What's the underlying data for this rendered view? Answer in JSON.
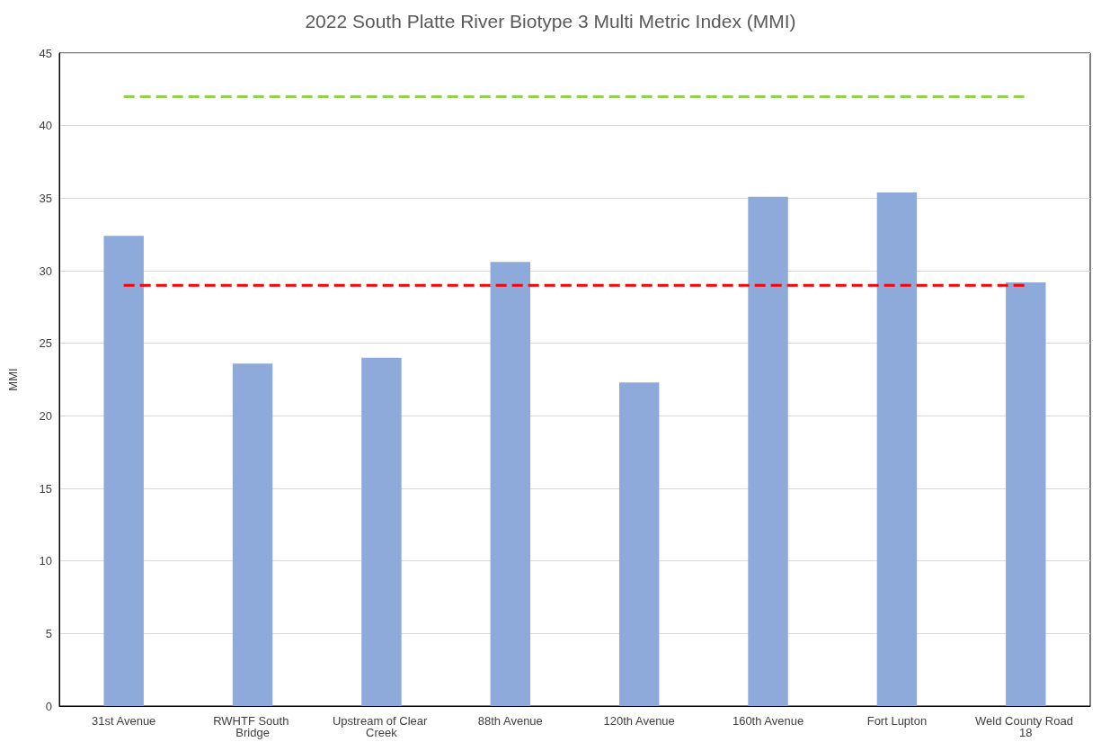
{
  "chart_data": {
    "type": "bar",
    "title": "2022 South Platte River Biotype 3 Multi Metric Index (MMI)",
    "ylabel": "MMI",
    "categories": [
      "31st Avenue",
      "RWHTF South Bridge",
      "Upstream of Clear Creek",
      "88th Avenue",
      "120th Avenue",
      "160th Avenue",
      "Fort Lupton",
      "Weld County Road 18"
    ],
    "series": [
      {
        "color": "#8eaadb",
        "values": [
          32.4,
          23.6,
          24.0,
          30.6,
          22.3,
          35.1,
          35.4,
          29.2
        ]
      },
      {
        "type": "line",
        "color": "#92d050",
        "line_style": "dashed",
        "marker": "none",
        "values": [
          42,
          42,
          42,
          42,
          42,
          42,
          42,
          42
        ]
      },
      {
        "type": "line",
        "color": "#ff0000",
        "line_style": "dashed",
        "marker": "none",
        "values": [
          29,
          29,
          29,
          29,
          29,
          29,
          29,
          29
        ]
      }
    ],
    "ylim": [
      0,
      45
    ],
    "yticks": [
      0,
      5,
      10,
      15,
      20,
      25,
      30,
      35,
      40,
      45
    ],
    "grid": "y"
  }
}
